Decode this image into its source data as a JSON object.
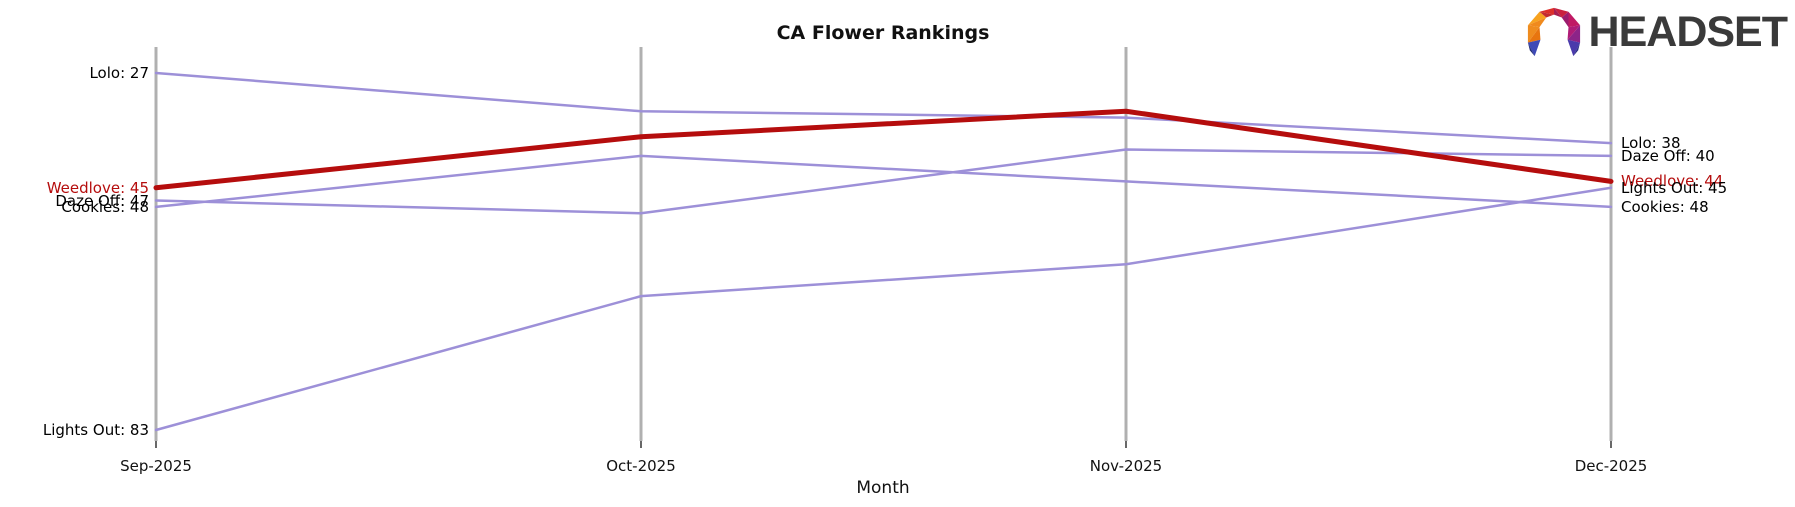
{
  "logo": {
    "text": "HEADSET"
  },
  "chart": {
    "title": "CA Flower Rankings",
    "xlabel": "Month"
  },
  "chart_data": {
    "type": "line",
    "subtype": "bump-ranking-parallel-axes",
    "title": "CA Flower Rankings",
    "xlabel": "Month",
    "ylabel": "",
    "categories": [
      "Sep-2025",
      "Oct-2025",
      "Nov-2025",
      "Dec-2025"
    ],
    "value_range": [
      27,
      83
    ],
    "y_inverted": true,
    "grid": false,
    "legend_position": "none",
    "series": [
      {
        "name": "Lolo",
        "values": [
          27,
          33,
          34,
          38
        ],
        "color": "#9d90d8",
        "width": 2.5,
        "highlighted": false
      },
      {
        "name": "Daze Off",
        "values": [
          47,
          49,
          39,
          40
        ],
        "color": "#9d90d8",
        "width": 2.5,
        "highlighted": false
      },
      {
        "name": "Cookies",
        "values": [
          48,
          40,
          44,
          48
        ],
        "color": "#9d90d8",
        "width": 2.5,
        "highlighted": false
      },
      {
        "name": "Lights Out",
        "values": [
          83,
          62,
          57,
          45
        ],
        "color": "#9d90d8",
        "width": 2.5,
        "highlighted": false
      },
      {
        "name": "Weedlove",
        "values": [
          45,
          37,
          33,
          44
        ],
        "color": "#b50d0d",
        "width": 5,
        "highlighted": true
      }
    ],
    "left_labels": [
      {
        "text": "Lolo: 27",
        "value": 27,
        "color": "#000000"
      },
      {
        "text": "Weedlove: 45",
        "value": 45,
        "color": "#b50d0d"
      },
      {
        "text": "Daze Off: 47",
        "value": 47,
        "color": "#000000"
      },
      {
        "text": "Cookies: 48",
        "value": 48,
        "color": "#000000"
      },
      {
        "text": "Lights Out: 83",
        "value": 83,
        "color": "#000000"
      }
    ],
    "right_labels": [
      {
        "text": "Lolo: 38",
        "value": 38,
        "color": "#000000"
      },
      {
        "text": "Daze Off: 40",
        "value": 40,
        "color": "#000000"
      },
      {
        "text": "Weedlove: 44",
        "value": 44,
        "color": "#b50d0d"
      },
      {
        "text": "Lights Out: 45",
        "value": 45,
        "color": "#000000"
      },
      {
        "text": "Cookies: 48",
        "value": 48,
        "color": "#000000"
      }
    ],
    "colors": {
      "axis": "#b0b0b0",
      "tick": "#262626",
      "line_default": "#9d90d8",
      "line_highlight": "#b50d0d",
      "text": "#000000"
    }
  }
}
